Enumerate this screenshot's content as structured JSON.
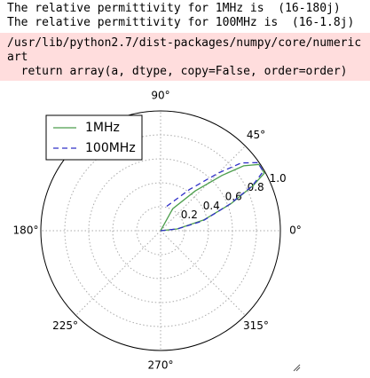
{
  "output_lines": [
    "The relative permittivity for 1MHz is  (16-180j)",
    "The relative permittivity for 100MHz is  (16-1.8j)"
  ],
  "warning_lines": [
    "/usr/lib/python2.7/dist-packages/numpy/core/numeric",
    "art",
    "  return array(a, dtype, copy=False, order=order)"
  ],
  "chart_data": {
    "type": "polar",
    "series": [
      {
        "name": "1MHz",
        "color": "#4c9e4c",
        "dash": "solid",
        "x": [
          90,
          61,
          49,
          42,
          38,
          34,
          29,
          26,
          21,
          14,
          6,
          0
        ],
        "values": [
          0,
          0.21,
          0.44,
          0.69,
          0.88,
          0.99,
          0.99,
          0.86,
          0.63,
          0.37,
          0.14,
          0
        ]
      },
      {
        "name": "100MHz",
        "color": "#3030c8",
        "dash": "dashed",
        "x": [
          76,
          55,
          45,
          40,
          35,
          30,
          26,
          21,
          13,
          6,
          0
        ],
        "values": [
          0.21,
          0.42,
          0.68,
          0.88,
          0.99,
          0.99,
          0.85,
          0.62,
          0.36,
          0.14,
          0
        ]
      }
    ],
    "xticks": [
      {
        "value": 0,
        "label": "0°"
      },
      {
        "value": 45,
        "label": "45°"
      },
      {
        "value": 90,
        "label": "90°"
      },
      {
        "value": 180,
        "label": "180°"
      },
      {
        "value": 225,
        "label": "225°"
      },
      {
        "value": 270,
        "label": "270°"
      },
      {
        "value": 315,
        "label": "315°"
      }
    ],
    "ylim": [
      0,
      1
    ],
    "yticks": [
      0.2,
      0.4,
      0.6,
      0.8,
      {
        "value": 1,
        "label": "1.0"
      }
    ],
    "grid": true,
    "legend": "upper left"
  }
}
